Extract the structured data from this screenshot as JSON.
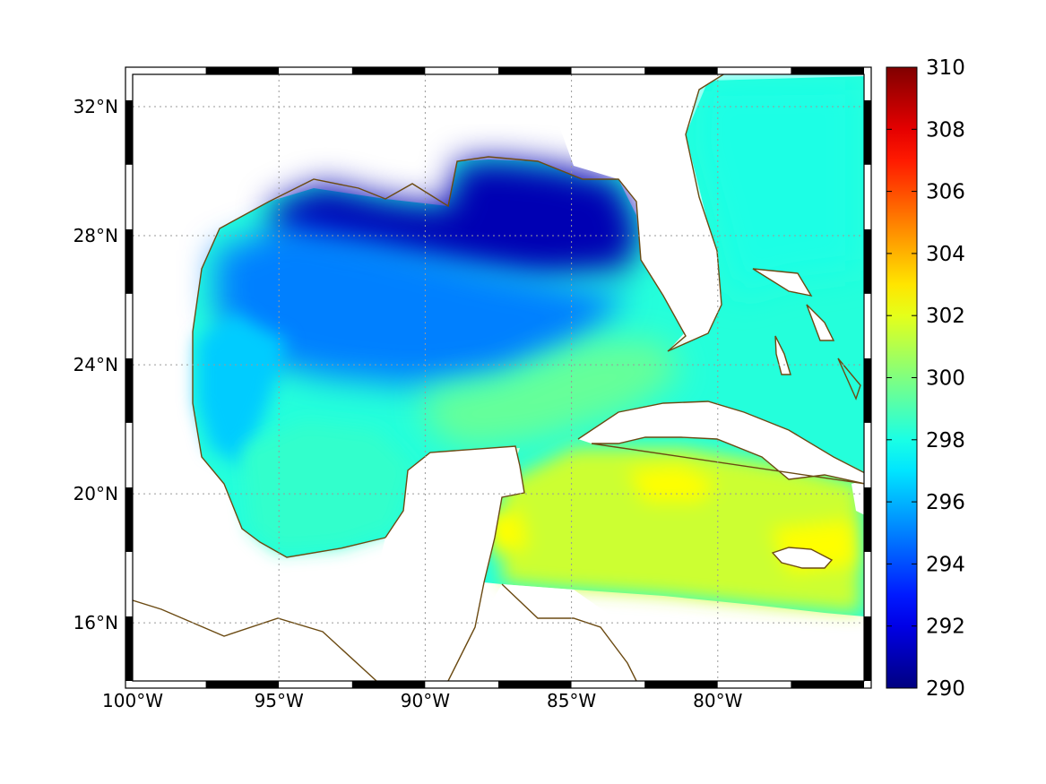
{
  "map": {
    "region": "Gulf of Mexico and northwestern Caribbean",
    "variable_ramp": "jet",
    "lon_range": [
      -100,
      -75
    ],
    "lat_range": [
      14.2,
      33
    ],
    "lon_ticks": [
      {
        "value": -100,
        "label": "100°W"
      },
      {
        "value": -95,
        "label": "95°W"
      },
      {
        "value": -90,
        "label": "90°W"
      },
      {
        "value": -85,
        "label": "85°W"
      },
      {
        "value": -80,
        "label": "80°W"
      }
    ],
    "lat_ticks": [
      {
        "value": 32,
        "label": "32°N"
      },
      {
        "value": 28,
        "label": "28°N"
      },
      {
        "value": 24,
        "label": "24°N"
      },
      {
        "value": 20,
        "label": "20°N"
      },
      {
        "value": 16,
        "label": "16°N"
      }
    ],
    "grid": true,
    "grid_style": "dotted",
    "frame": "black-white checkered border",
    "coastline_color": "#6b4a12",
    "land_color": "#ffffff"
  },
  "colorbar": {
    "min": 290,
    "max": 310,
    "ticks": [
      {
        "value": 310,
        "label": "310"
      },
      {
        "value": 308,
        "label": "308"
      },
      {
        "value": 306,
        "label": "306"
      },
      {
        "value": 304,
        "label": "304"
      },
      {
        "value": 302,
        "label": "302"
      },
      {
        "value": 300,
        "label": "300"
      },
      {
        "value": 298,
        "label": "298"
      },
      {
        "value": 296,
        "label": "296"
      },
      {
        "value": 294,
        "label": "294"
      },
      {
        "value": 292,
        "label": "292"
      },
      {
        "value": 290,
        "label": "290"
      }
    ]
  },
  "field_regions": [
    {
      "name": "northern-gulf-shelf",
      "value": 291
    },
    {
      "name": "central-gulf",
      "value": 295
    },
    {
      "name": "western-gulf",
      "value": 296.5
    },
    {
      "name": "bay-of-campeche",
      "value": 298.5
    },
    {
      "name": "southeast-gulf",
      "value": 299.5
    },
    {
      "name": "atlantic-off-florida",
      "value": 298
    },
    {
      "name": "caribbean",
      "value": 301.5
    },
    {
      "name": "caribbean-warm-patch",
      "value": 302.5
    }
  ]
}
